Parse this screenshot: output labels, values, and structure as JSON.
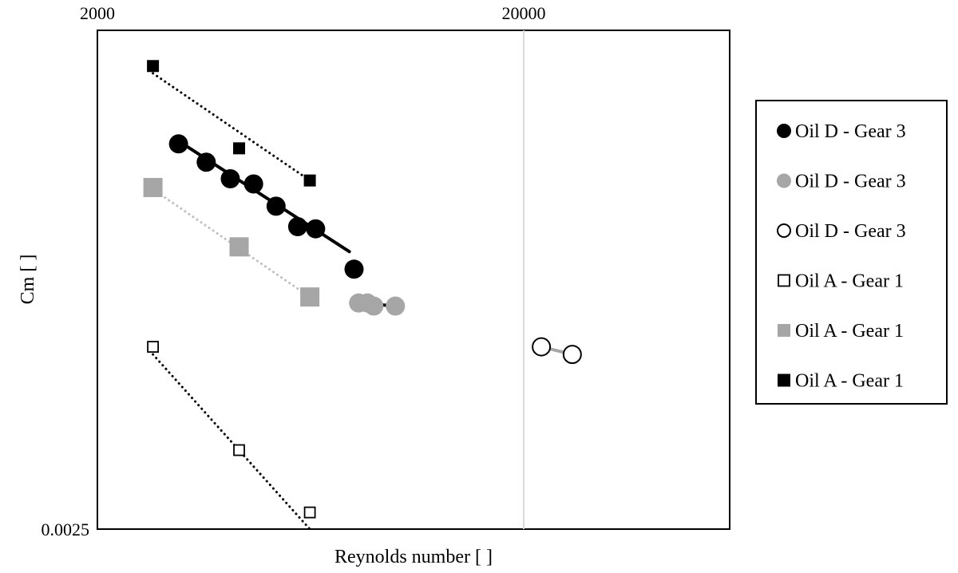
{
  "chart_data": {
    "type": "scatter",
    "title": "",
    "xlabel": "Reynolds number [ ]",
    "ylabel": "Cm [ ]",
    "x_scale": "log",
    "y_scale": "log",
    "xlim": [
      2000,
      30000
    ],
    "ylim": [
      0.0025,
      0.025
    ],
    "x_tick_labels": [
      "2000",
      "20000"
    ],
    "y_tick_labels": [
      "0.0025"
    ],
    "grid": "vertical line at 20000",
    "legend_position": "right",
    "series": [
      {
        "name": "Oil D - Gear 3",
        "marker": "circle-filled",
        "color": "#000000",
        "x": [
          3100,
          3600,
          4100,
          4650,
          5250,
          5900,
          6500,
          8000
        ],
        "y": [
          0.0148,
          0.0136,
          0.0126,
          0.0123,
          0.0111,
          0.0101,
          0.01,
          0.0083
        ],
        "trendline": {
          "style": "solid",
          "color": "#000000",
          "x": [
            3100,
            7800
          ],
          "y": [
            0.015,
            0.009
          ]
        }
      },
      {
        "name": "Oil D - Gear 3",
        "marker": "circle-filled",
        "color": "#a6a6a6",
        "x": [
          8200,
          8600,
          8900,
          10000
        ],
        "y": [
          0.0071,
          0.0071,
          0.007,
          0.007
        ],
        "trendline": {
          "style": "solid",
          "color": "#000000",
          "x": [
            8200,
            10000
          ],
          "y": [
            0.0071,
            0.007
          ]
        }
      },
      {
        "name": "Oil D - Gear 3",
        "marker": "circle-open",
        "color": "#000000",
        "x": [
          22000,
          26000
        ],
        "y": [
          0.0058,
          0.0056
        ],
        "trendline": {
          "style": "solid",
          "color": "#a6a6a6",
          "x": [
            22000,
            26000
          ],
          "y": [
            0.0058,
            0.0056
          ]
        }
      },
      {
        "name": "Oil A - Gear 1",
        "marker": "square-open",
        "color": "#000000",
        "x": [
          2700,
          4300,
          6300
        ],
        "y": [
          0.0058,
          0.0036,
          0.0027
        ],
        "trendline": {
          "style": "dotted",
          "color": "#000000",
          "x": [
            2700,
            6300
          ],
          "y": [
            0.0056,
            0.0025
          ]
        }
      },
      {
        "name": "Oil A - Gear 1",
        "marker": "square-filled",
        "color": "#a6a6a6",
        "x": [
          2700,
          4300,
          6300
        ],
        "y": [
          0.0121,
          0.0092,
          0.0073
        ],
        "trendline": {
          "style": "dotted",
          "color": "#bfbfbf",
          "x": [
            2700,
            6300
          ],
          "y": [
            0.012,
            0.0073
          ]
        }
      },
      {
        "name": "Oil A - Gear 1",
        "marker": "square-filled",
        "color": "#000000",
        "x": [
          2700,
          4300,
          6300
        ],
        "y": [
          0.0212,
          0.0145,
          0.0125
        ],
        "trendline": {
          "style": "dotted",
          "color": "#000000",
          "x": [
            2700,
            6300
          ],
          "y": [
            0.0205,
            0.0125
          ]
        }
      }
    ]
  }
}
